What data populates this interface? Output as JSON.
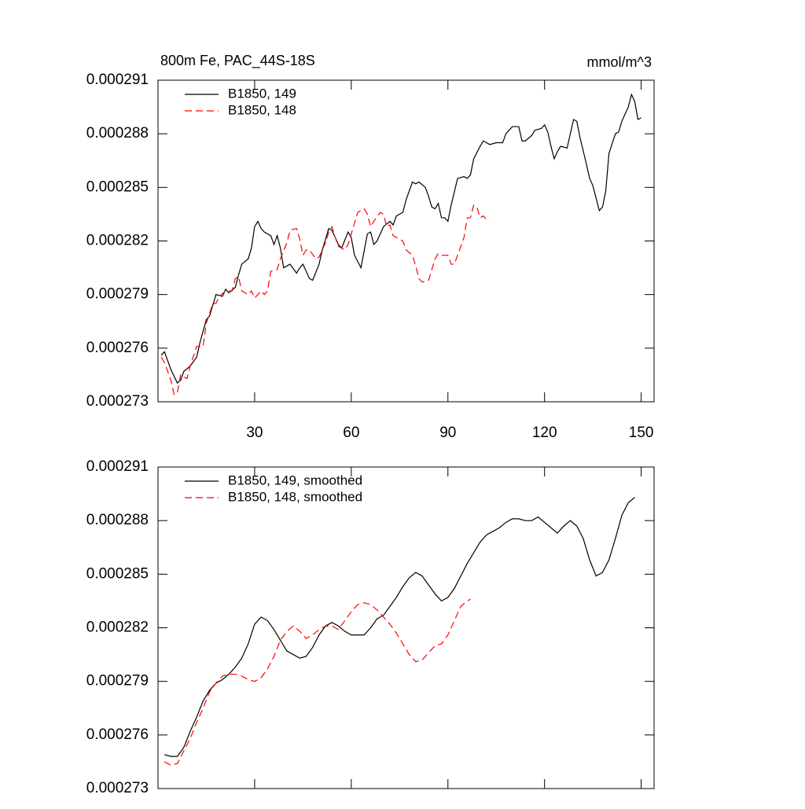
{
  "chart_data": [
    {
      "type": "line",
      "title": "800m Fe, PAC_44S-18S",
      "units": "mmol/m^3",
      "xlim": [
        0,
        154
      ],
      "xticks": [
        30,
        60,
        90,
        120,
        150
      ],
      "ylim": [
        0.000273,
        0.000291
      ],
      "yticks": [
        0.000273,
        0.000276,
        0.000279,
        0.000282,
        0.000285,
        0.000288,
        0.000291
      ],
      "series": [
        {
          "name": "B1850, 149",
          "color": "#000000",
          "dash": false,
          "x": [
            1,
            2,
            4,
            6,
            7,
            8,
            10,
            12,
            13,
            15,
            16,
            18,
            20,
            21,
            22,
            24,
            25,
            26,
            28,
            29,
            30,
            31,
            32,
            33,
            35,
            36,
            37,
            38,
            39,
            41,
            43,
            44,
            45,
            47,
            48,
            50,
            51,
            53,
            54,
            56,
            57,
            59,
            60,
            61,
            63,
            65,
            66,
            67,
            68,
            70,
            72,
            73,
            74,
            76,
            77,
            79,
            80,
            81,
            83,
            84,
            85,
            86,
            87,
            88,
            89,
            90,
            91,
            93,
            95,
            96,
            97,
            98,
            100,
            101,
            103,
            105,
            107,
            108,
            110,
            112,
            113,
            114,
            116,
            117,
            119,
            120,
            121,
            122,
            123,
            124,
            125,
            127,
            128,
            129,
            130,
            131,
            133,
            134,
            135,
            137,
            138,
            139,
            140,
            142,
            143,
            144,
            146,
            147,
            148,
            149,
            150
          ],
          "values": [
            0.0002756,
            0.0002758,
            0.0002748,
            0.00027405,
            0.0002742,
            0.0002747,
            0.000275,
            0.0002755,
            0.0002763,
            0.0002776,
            0.0002778,
            0.000279,
            0.0002789,
            0.0002793,
            0.0002791,
            0.0002794,
            0.0002801,
            0.0002807,
            0.000281,
            0.0002816,
            0.0002828,
            0.0002831,
            0.0002827,
            0.0002825,
            0.0002823,
            0.0002818,
            0.0002823,
            0.0002816,
            0.0002805,
            0.0002807,
            0.0002802,
            0.0002805,
            0.0002807,
            0.0002799,
            0.0002798,
            0.0002807,
            0.0002815,
            0.0002827,
            0.0002826,
            0.0002818,
            0.0002816,
            0.0002825,
            0.0002822,
            0.0002812,
            0.0002805,
            0.0002824,
            0.0002825,
            0.0002818,
            0.000282,
            0.0002828,
            0.0002831,
            0.0002829,
            0.0002834,
            0.0002836,
            0.0002843,
            0.0002853,
            0.0002852,
            0.0002853,
            0.000285,
            0.0002845,
            0.0002839,
            0.0002838,
            0.0002841,
            0.0002833,
            0.0002833,
            0.0002831,
            0.000284,
            0.0002855,
            0.0002856,
            0.0002855,
            0.0002857,
            0.0002866,
            0.0002873,
            0.0002876,
            0.0002874,
            0.0002875,
            0.0002875,
            0.000288,
            0.0002884,
            0.0002884,
            0.0002876,
            0.0002876,
            0.0002879,
            0.0002882,
            0.0002883,
            0.0002885,
            0.0002881,
            0.0002873,
            0.0002866,
            0.000287,
            0.0002873,
            0.0002872,
            0.000288,
            0.0002888,
            0.0002887,
            0.0002878,
            0.0002863,
            0.0002855,
            0.0002851,
            0.0002837,
            0.0002839,
            0.0002848,
            0.0002869,
            0.000288,
            0.0002881,
            0.0002887,
            0.0002895,
            0.0002902,
            0.0002898,
            0.0002888,
            0.0002889
          ]
        },
        {
          "name": "B1850, 148",
          "color": "#ff0000",
          "dash": true,
          "x": [
            1,
            2,
            4,
            5,
            6,
            7,
            9,
            10,
            12,
            13,
            14,
            15,
            17,
            18,
            19,
            21,
            23,
            24,
            25,
            26,
            28,
            29,
            30,
            32,
            33,
            34,
            35,
            37,
            38,
            40,
            41,
            43,
            44,
            45,
            46,
            47,
            49,
            50,
            52,
            53,
            54,
            55,
            56,
            58,
            59,
            61,
            62,
            64,
            65,
            66,
            67,
            69,
            70,
            71,
            72,
            73,
            75,
            76,
            77,
            79,
            80,
            81,
            82,
            84,
            85,
            86,
            87,
            88,
            90,
            91,
            92,
            93,
            95,
            96,
            97,
            98,
            99,
            100,
            101,
            102,
            103
          ],
          "values": [
            0.0002755,
            0.0002752,
            0.0002742,
            0.0002734,
            0.0002735,
            0.0002745,
            0.0002743,
            0.000275,
            0.0002761,
            0.0002761,
            0.0002761,
            0.0002774,
            0.0002785,
            0.0002785,
            0.0002789,
            0.0002792,
            0.0002792,
            0.0002799,
            0.00028,
            0.0002792,
            0.000279,
            0.0002792,
            0.0002788,
            0.0002792,
            0.000279,
            0.0002792,
            0.0002803,
            0.0002804,
            0.000281,
            0.0002819,
            0.0002826,
            0.0002827,
            0.0002821,
            0.0002812,
            0.0002815,
            0.0002815,
            0.000281,
            0.0002811,
            0.0002819,
            0.0002825,
            0.0002828,
            0.0002822,
            0.0002817,
            0.0002815,
            0.0002818,
            0.000283,
            0.0002836,
            0.0002838,
            0.0002835,
            0.0002828,
            0.0002831,
            0.0002836,
            0.0002835,
            0.0002828,
            0.0002829,
            0.0002823,
            0.0002821,
            0.000282,
            0.0002815,
            0.0002812,
            0.0002806,
            0.0002799,
            0.0002797,
            0.0002798,
            0.0002804,
            0.000281,
            0.0002813,
            0.0002812,
            0.0002812,
            0.0002807,
            0.0002807,
            0.0002812,
            0.0002822,
            0.0002833,
            0.0002833,
            0.000284,
            0.0002839,
            0.0002833,
            0.0002834,
            0.0002832,
            0.0002832
          ]
        }
      ]
    },
    {
      "type": "line",
      "xlim": [
        0,
        154
      ],
      "xticks": [
        30,
        60,
        90,
        120,
        150
      ],
      "xtick_labels": false,
      "ylim": [
        0.000273,
        0.000291
      ],
      "yticks": [
        0.000273,
        0.000276,
        0.000279,
        0.000282,
        0.000285,
        0.000288,
        0.000291
      ],
      "series": [
        {
          "name": "B1850, 149, smoothed",
          "color": "#000000",
          "dash": false,
          "x": [
            2,
            4,
            6,
            8,
            10,
            12,
            14,
            16,
            18,
            20,
            22,
            24,
            26,
            28,
            30,
            32,
            34,
            36,
            38,
            40,
            42,
            44,
            46,
            48,
            50,
            52,
            54,
            56,
            58,
            60,
            62,
            64,
            66,
            68,
            70,
            72,
            74,
            76,
            78,
            80,
            82,
            84,
            86,
            88,
            90,
            92,
            94,
            96,
            98,
            100,
            102,
            104,
            106,
            108,
            110,
            112,
            114,
            116,
            118,
            120,
            122,
            124,
            126,
            128,
            130,
            132,
            134,
            136,
            138,
            140,
            142,
            144,
            146,
            148
          ],
          "values": [
            0.0002749,
            0.0002748,
            0.0002748,
            0.0002753,
            0.0002762,
            0.000277,
            0.0002779,
            0.0002785,
            0.0002789,
            0.0002791,
            0.0002794,
            0.0002798,
            0.0002803,
            0.0002811,
            0.0002822,
            0.0002826,
            0.0002824,
            0.0002819,
            0.0002813,
            0.0002807,
            0.0002805,
            0.0002803,
            0.0002804,
            0.0002809,
            0.0002816,
            0.0002821,
            0.0002823,
            0.0002821,
            0.0002818,
            0.0002816,
            0.0002816,
            0.0002816,
            0.000282,
            0.0002825,
            0.0002827,
            0.0002832,
            0.0002837,
            0.0002843,
            0.0002848,
            0.0002851,
            0.0002849,
            0.0002844,
            0.0002839,
            0.0002835,
            0.0002837,
            0.0002842,
            0.0002849,
            0.0002856,
            0.0002862,
            0.0002868,
            0.0002872,
            0.0002874,
            0.0002876,
            0.0002879,
            0.0002881,
            0.0002881,
            0.000288,
            0.000288,
            0.0002882,
            0.0002879,
            0.0002876,
            0.0002873,
            0.0002877,
            0.000288,
            0.0002877,
            0.000287,
            0.0002858,
            0.0002849,
            0.0002851,
            0.0002858,
            0.000287,
            0.0002883,
            0.000289,
            0.0002893
          ]
        },
        {
          "name": "B1850, 148, smoothed",
          "color": "#ff0000",
          "dash": true,
          "x": [
            2,
            4,
            6,
            8,
            10,
            12,
            14,
            16,
            18,
            20,
            22,
            24,
            26,
            28,
            30,
            32,
            34,
            36,
            38,
            40,
            42,
            44,
            46,
            48,
            50,
            52,
            54,
            56,
            58,
            60,
            62,
            64,
            66,
            68,
            70,
            72,
            74,
            76,
            78,
            80,
            82,
            84,
            86,
            88,
            90,
            92,
            94,
            96,
            97
          ],
          "values": [
            0.0002745,
            0.0002743,
            0.0002744,
            0.0002751,
            0.0002758,
            0.0002767,
            0.0002775,
            0.0002784,
            0.0002789,
            0.0002793,
            0.0002794,
            0.0002794,
            0.0002793,
            0.0002791,
            0.000279,
            0.0002792,
            0.0002797,
            0.0002804,
            0.0002813,
            0.0002818,
            0.0002821,
            0.0002818,
            0.0002814,
            0.0002816,
            0.0002819,
            0.0002821,
            0.0002821,
            0.0002819,
            0.0002824,
            0.0002829,
            0.0002833,
            0.0002834,
            0.0002833,
            0.000283,
            0.0002826,
            0.0002822,
            0.0002817,
            0.0002811,
            0.0002805,
            0.0002801,
            0.0002802,
            0.0002806,
            0.000281,
            0.0002811,
            0.0002816,
            0.0002824,
            0.0002832,
            0.0002835,
            0.0002836
          ]
        }
      ]
    }
  ]
}
